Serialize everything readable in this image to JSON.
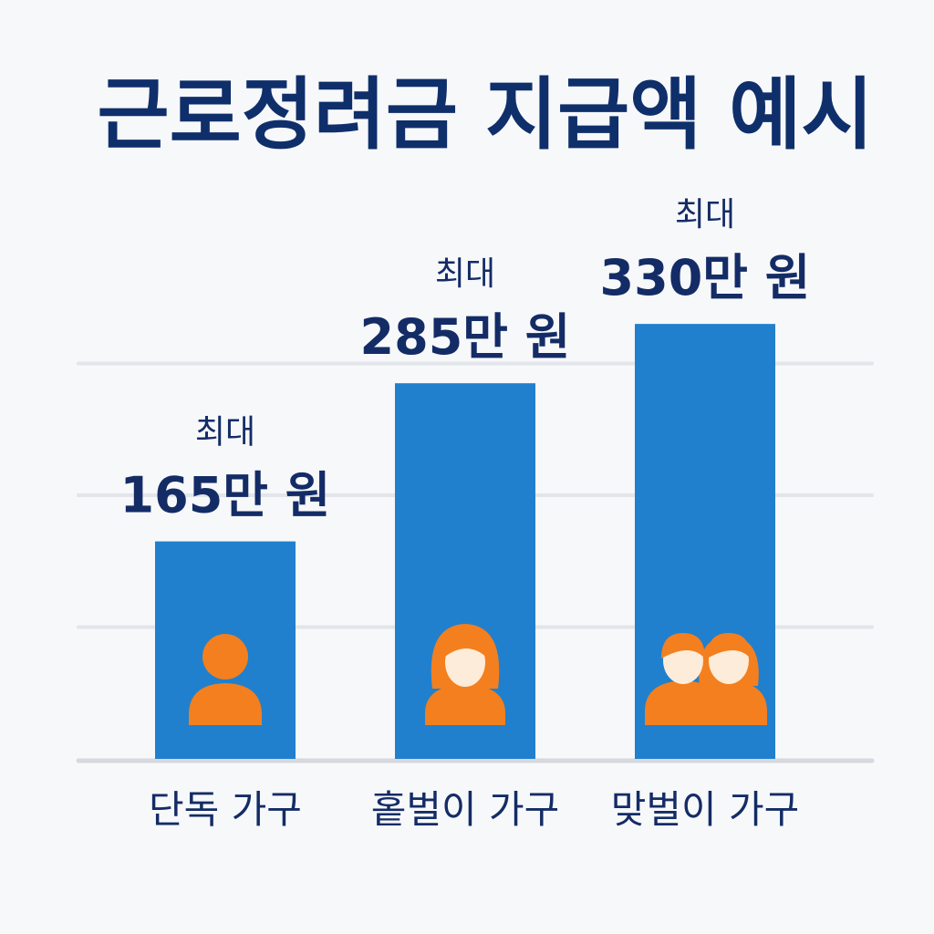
{
  "chart_data": {
    "type": "bar",
    "title": "근로정려금 지급액 예시",
    "categories": [
      "단독 가구",
      "홑벌이 가구",
      "맞벌이 가구"
    ],
    "values": [
      165,
      285,
      330
    ],
    "unit": "만 원",
    "label_prefix": "최대",
    "data_labels": [
      "165만 원",
      "285만 원",
      "330만 원"
    ],
    "icons": [
      "single-person-icon",
      "woman-icon",
      "couple-icon"
    ],
    "ylim": [
      0,
      400
    ],
    "grid": true,
    "legend": "none"
  },
  "colors": {
    "title": "#0f2f6b",
    "text": "#142c66",
    "bar": "#2080cd",
    "icon": "#f47f1e",
    "icon_light": "#fdecd9",
    "grid": "#e2e5ea"
  }
}
